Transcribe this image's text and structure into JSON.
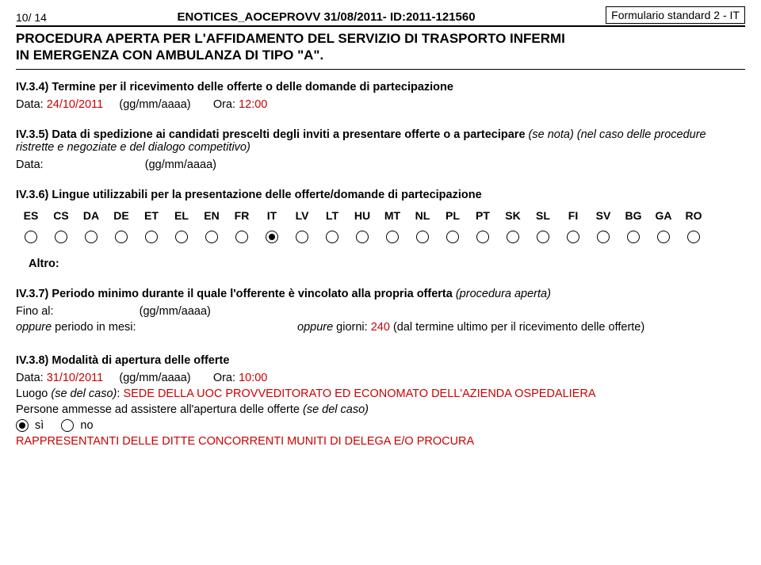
{
  "header": {
    "page_num": "10/ 14",
    "center": "ENOTICES_AOCEPROVV 31/08/2011- ID:2011-121560",
    "right": "Formulario standard 2 - IT"
  },
  "title_lines": [
    "PROCEDURA APERTA PER L'AFFIDAMENTO DEL SERVIZIO DI TRASPORTO INFERMI",
    "IN EMERGENZA CON AMBULANZA DI TIPO \"A\"."
  ],
  "iv34": {
    "heading": "IV.3.4) Termine per il ricevimento delle offerte o delle domande di partecipazione",
    "data_label": "Data:",
    "data_value": "24/10/2011",
    "gg": "(gg/mm/aaaa)",
    "ora_label": "Ora:",
    "ora_value": "12:00"
  },
  "iv35": {
    "heading_prefix": "IV.3.5) Data di spedizione ai candidati prescelti degli inviti a presentare offerte o a partecipare ",
    "heading_italic": "(se nota) (nel caso delle procedure ristrette e negoziate e del dialogo competitivo)",
    "data_label": "Data:",
    "gg": "(gg/mm/aaaa)"
  },
  "iv36": {
    "heading": "IV.3.6) Lingue utilizzabili per la presentazione delle offerte/domande di partecipazione",
    "langs": [
      "ES",
      "CS",
      "DA",
      "DE",
      "ET",
      "EL",
      "EN",
      "FR",
      "IT",
      "LV",
      "LT",
      "HU",
      "MT",
      "NL",
      "PL",
      "PT",
      "SK",
      "SL",
      "FI",
      "SV",
      "BG",
      "GA",
      "RO"
    ],
    "selected": "IT",
    "altro_label": "Altro:"
  },
  "iv37": {
    "heading_prefix": "IV.3.7) Periodo minimo durante il quale l'offerente è vincolato alla propria offerta ",
    "heading_italic": "(procedura aperta)",
    "fino_label": "Fino al:",
    "gg": "(gg/mm/aaaa)",
    "oppure_mesi_prefix": "oppure",
    "oppure_mesi": " periodo in mesi:",
    "oppure_giorni_prefix": "oppure",
    "oppure_giorni_mid": " giorni: ",
    "giorni_value": "240",
    "oppure_giorni_suffix": " (dal termine ultimo per il ricevimento delle offerte)"
  },
  "iv38": {
    "heading": "IV.3.8) Modalità di apertura delle offerte",
    "data_label": "Data:",
    "data_value": "31/10/2011",
    "gg": "(gg/mm/aaaa)",
    "ora_label": "Ora:",
    "ora_value": "10:00",
    "luogo_label": "Luogo ",
    "luogo_paren": "(se del caso)",
    "luogo_value": "SEDE DELLA UOC PROVVEDITORATO ED ECONOMATO DELL'AZIENDA OSPEDALIERA",
    "persone_prefix": "Persone ammesse ad assistere all'apertura delle offerte ",
    "persone_italic": "(se del caso)",
    "si_label": "sì",
    "no_label": "no",
    "selected": "si",
    "rappresentanti": "RAPPRESENTANTI DELLE DITTE CONCORRENTI MUNITI DI DELEGA E/O PROCURA"
  },
  "colors": {
    "red": "#cc0000",
    "black": "#000000"
  }
}
